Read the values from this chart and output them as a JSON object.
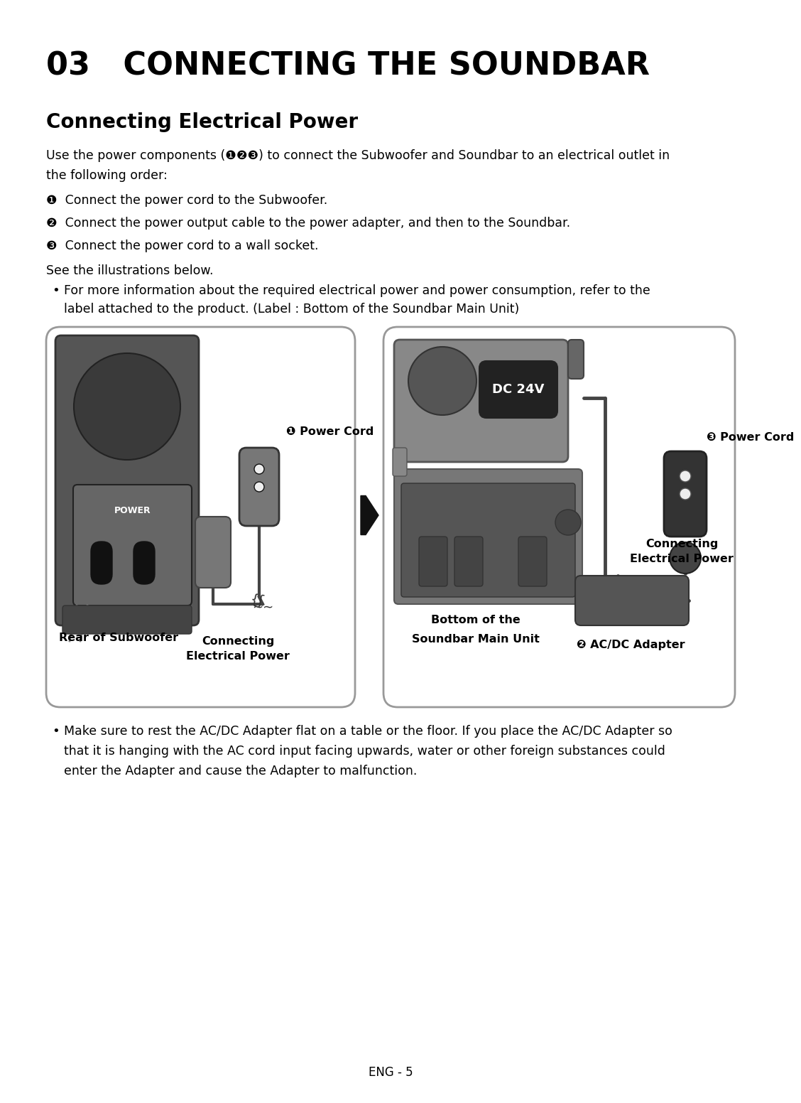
{
  "title": "03   CONNECTING THE SOUNDBAR",
  "section_title": "Connecting Electrical Power",
  "body_text_1a": "Use the power components (",
  "body_text_1b": ") to connect the Subwoofer and Soundbar to an electrical outlet in",
  "body_text_1c": "the following order:",
  "steps": [
    "Connect the power cord to the Subwoofer.",
    "Connect the power output cable to the power adapter, and then to the Soundbar.",
    "Connect the power cord to a wall socket."
  ],
  "see_illustrations": "See the illustrations below.",
  "bullet1_line1": "For more information about the required electrical power and power consumption, refer to the",
  "bullet1_line2": "label attached to the product. (Label : Bottom of the Soundbar Main Unit)",
  "label_rear": "Rear of Subwoofer",
  "label_connecting1": "Connecting\nElectrical Power",
  "label_power_cord1": "❶ Power Cord",
  "label_bottom1": "Bottom of the",
  "label_bottom2": "Soundbar Main Unit",
  "label_power_cord3": "❸ Power Cord",
  "label_connecting2": "Connecting\nElectrical Power",
  "label_acdc": "❷ AC/DC Adapter",
  "label_dc24v": "DC 24V",
  "label_power": "POWER",
  "bullet2_line1": "Make sure to rest the AC/DC Adapter flat on a table or the floor. If you place the AC/DC Adapter so",
  "bullet2_line2": "that it is hanging with the AC cord input facing upwards, water or other foreign substances could",
  "bullet2_line3": "enter the Adapter and cause the Adapter to malfunction.",
  "footer": "ENG - 5",
  "bg_color": "#ffffff",
  "text_color": "#000000",
  "num1": "❶",
  "num2": "❷",
  "num3": "❸"
}
